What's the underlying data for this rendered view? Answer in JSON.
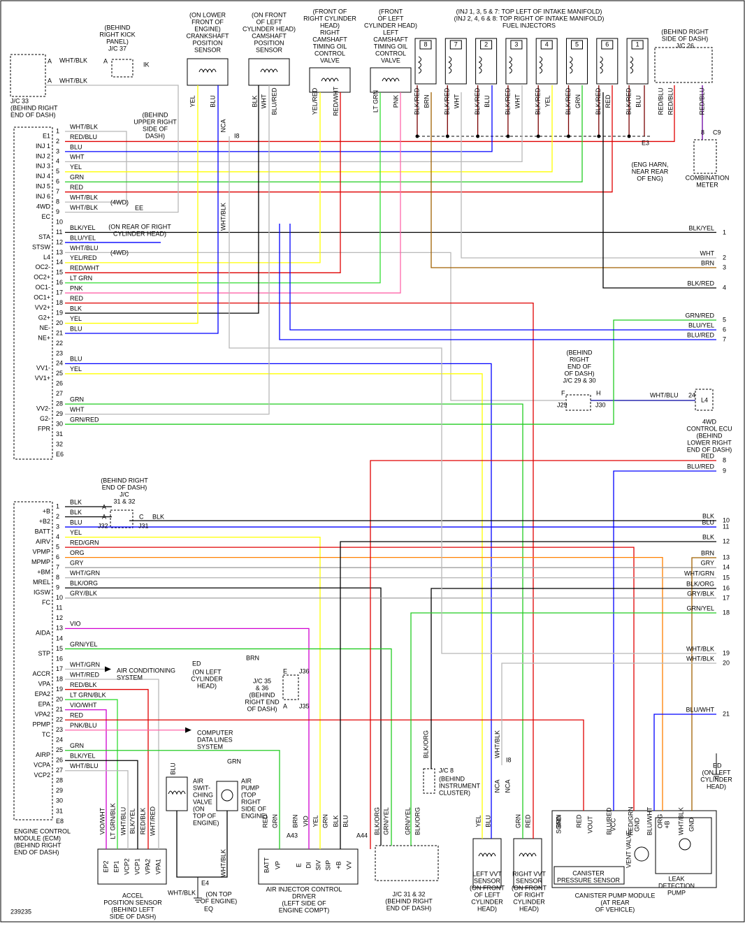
{
  "ecm_connectors": [
    {
      "id": "E6",
      "pins": [
        {
          "pin": 1,
          "name": "E1",
          "wire": "WHT/BLK"
        },
        {
          "pin": 2,
          "name": "INJ 1",
          "wire": "RED/BLU"
        },
        {
          "pin": 3,
          "name": "INJ 2",
          "wire": "BLU"
        },
        {
          "pin": 4,
          "name": "INJ 3",
          "wire": "WHT"
        },
        {
          "pin": 5,
          "name": "INJ 4",
          "wire": "YEL"
        },
        {
          "pin": 6,
          "name": "INJ 5",
          "wire": "GRN"
        },
        {
          "pin": 7,
          "name": "INJ 6",
          "wire": "RED"
        },
        {
          "pin": 8,
          "name": "4WD",
          "wire": "WHT/BLK"
        },
        {
          "pin": 9,
          "name": "EC",
          "wire": "WHT/BLK"
        },
        {
          "pin": 10
        },
        {
          "pin": 11,
          "name": "STA",
          "wire": "BLK/YEL"
        },
        {
          "pin": 12,
          "name": "STSW",
          "wire": "BLU/YEL"
        },
        {
          "pin": 13,
          "name": "L4",
          "wire": "WHT/BLU"
        },
        {
          "pin": 14,
          "name": "OC2-",
          "wire": "YEL/RED"
        },
        {
          "pin": 15,
          "name": "OC2+",
          "wire": "RED/WHT"
        },
        {
          "pin": 16,
          "name": "OC1-",
          "wire": "LT GRN"
        },
        {
          "pin": 17,
          "name": "OC1+",
          "wire": "PNK"
        },
        {
          "pin": 18,
          "name": "VV2+",
          "wire": "RED"
        },
        {
          "pin": 19,
          "name": "G2+",
          "wire": "BLK"
        },
        {
          "pin": 20,
          "name": "NE-",
          "wire": "YEL"
        },
        {
          "pin": 21,
          "name": "NE+",
          "wire": "BLU"
        },
        {
          "pin": 22
        },
        {
          "pin": 23
        },
        {
          "pin": 24,
          "name": "VV1-",
          "wire": "BLU"
        },
        {
          "pin": 25,
          "name": "VV1+",
          "wire": "YEL"
        },
        {
          "pin": 26
        },
        {
          "pin": 27
        },
        {
          "pin": 28,
          "name": "VV2-",
          "wire": "GRN"
        },
        {
          "pin": 29,
          "name": "G2-",
          "wire": "WHT"
        },
        {
          "pin": 30,
          "name": "FPR",
          "wire": "GRN/RED"
        },
        {
          "pin": 31
        },
        {
          "pin": 32
        }
      ]
    },
    {
      "id": "E8",
      "pins": [
        {
          "pin": 1,
          "name": "+B",
          "wire": "BLK"
        },
        {
          "pin": 2,
          "name": "+B2",
          "wire": "BLK"
        },
        {
          "pin": 3,
          "name": "BATT",
          "wire": "BLU"
        },
        {
          "pin": 4,
          "name": "AIRV",
          "wire": "YEL"
        },
        {
          "pin": 5,
          "name": "VPMP",
          "wire": "RED/GRN"
        },
        {
          "pin": 6,
          "name": "MPMP",
          "wire": "ORG"
        },
        {
          "pin": 7,
          "name": "+BM",
          "wire": "GRY"
        },
        {
          "pin": 8,
          "name": "MREL",
          "wire": "WHT/GRN"
        },
        {
          "pin": 9,
          "name": "IGSW",
          "wire": "BLK/ORG"
        },
        {
          "pin": 10,
          "name": "FC",
          "wire": "GRY/BLK"
        },
        {
          "pin": 11
        },
        {
          "pin": 12
        },
        {
          "pin": 13,
          "name": "AIDA",
          "wire": "VIO"
        },
        {
          "pin": 14
        },
        {
          "pin": 15,
          "name": "STP",
          "wire": "GRN/YEL"
        },
        {
          "pin": 16
        },
        {
          "pin": 17,
          "name": "ACCR",
          "wire": "WHT/GRN"
        },
        {
          "pin": 18,
          "name": "VPA",
          "wire": "WHT/RED"
        },
        {
          "pin": 19,
          "name": "EPA2",
          "wire": "RED/BLK"
        },
        {
          "pin": 20,
          "name": "EPA",
          "wire": "LT GRN/BLK"
        },
        {
          "pin": 21,
          "name": "VPA2",
          "wire": "VIO/WHT"
        },
        {
          "pin": 22,
          "name": "PPMP",
          "wire": "RED"
        },
        {
          "pin": 23,
          "name": "TC",
          "wire": "PNK/BLU"
        },
        {
          "pin": 24
        },
        {
          "pin": 25,
          "name": "AIRP",
          "wire": "GRN"
        },
        {
          "pin": 26,
          "name": "VCPA",
          "wire": "BLK/YEL"
        },
        {
          "pin": 27,
          "name": "VCP2",
          "wire": "WHT/BLU"
        },
        {
          "pin": 28
        },
        {
          "pin": 29
        },
        {
          "pin": 30
        },
        {
          "pin": 31
        }
      ]
    }
  ],
  "right_wires": [
    {
      "wire": "BLK/YEL",
      "number": 1
    },
    {
      "wire": "WHT",
      "number": 2
    },
    {
      "wire": "BRN",
      "number": 3
    },
    {
      "wire": "BLK/RED",
      "number": 4
    },
    {
      "wire": "GRN/RED",
      "number": 5
    },
    {
      "wire": "BLU/YEL",
      "number": 6
    },
    {
      "wire": "BLU/RED",
      "number": 7
    },
    {
      "wire": "RED",
      "number": 8
    },
    {
      "wire": "BLU/RED",
      "number": 9
    },
    {
      "wire": "BLK",
      "number": 10
    },
    {
      "wire": "BLU",
      "number": 11
    },
    {
      "wire": "BLK",
      "number": 12
    },
    {
      "wire": "BRN",
      "number": 13
    },
    {
      "wire": "GRY",
      "number": 14
    },
    {
      "wire": "WHT/GRN",
      "number": 15
    },
    {
      "wire": "BLK/ORG",
      "number": 16
    },
    {
      "wire": "GRY/BLK",
      "number": 17
    },
    {
      "wire": "GRN/YEL",
      "number": 18
    },
    {
      "wire": "WHT/BLK",
      "number": 19
    },
    {
      "wire": "WHT/BLK",
      "number": 20
    },
    {
      "wire": "BLU/WHT",
      "number": 21
    }
  ],
  "labels": [
    [
      "(BEHIND",
      "RIGHT KICK",
      "PANEL)",
      "J/C 37"
    ],
    [
      "J/C 33",
      "(BEHIND RIGHT",
      "END OF DASH)"
    ],
    [
      "(ON LOWER",
      "FRONT OF",
      "ENGINE)",
      "CRANKSHAFT",
      "POSITION",
      "SENSOR"
    ],
    [
      "(ON FRONT",
      "OF LEFT",
      "CYLINDER HEAD)",
      "CAMSHAFT",
      "POSITION",
      "SENSOR"
    ],
    [
      "(FRONT OF",
      "RIGHT CYLINDER",
      "HEAD)",
      "RIGHT",
      "CAMSHAFT",
      "TIMING OIL",
      "CONTROL",
      "VALVE"
    ],
    [
      "(FRONT",
      "OF LEFT",
      "CYLINDER HEAD)",
      "LEFT",
      "CAMSHAFT",
      "TIMING OIL",
      "CONTROL",
      "VALVE"
    ],
    [
      "(INJ 1, 3, 5 & 7: TOP LEFT OF INTAKE MANIFOLD)",
      "(INJ 2, 4, 6 & 8: TOP RIGHT OF INTAKE MANIFOLD)",
      "FUEL INJECTORS"
    ],
    [
      "(BEHIND RIGHT",
      "SIDE OF DASH)",
      "J/C 26"
    ],
    [
      "(BEHIND",
      "UPPER RIGHT",
      "SIDE OF",
      "DASH)"
    ],
    [
      "(ON REAR OF RIGHT",
      "CYLINDER HEAD)"
    ],
    [
      "(ENG HARN,",
      "NEAR REAR",
      "OF ENG)"
    ],
    [
      "COMBINATION",
      "METER"
    ],
    [
      "(BEHIND",
      "RIGHT",
      "END OF",
      "OF DASH)",
      "J/C 29 & 30"
    ],
    [
      "4WD",
      "CONTROL ECU",
      "(BEHIND",
      "LOWER RIGHT",
      "END OF DASH)"
    ],
    [
      "(BEHIND RIGHT",
      "END OF DASH)",
      "J/C",
      "31 & 32"
    ],
    [
      "(ON LEFT",
      "CYLINDER",
      "HEAD)"
    ],
    [
      "J/C 35",
      "& 36",
      "(BEHIND",
      "RIGHT END",
      "OF DASH)"
    ],
    [
      "AIR CONDITIONING",
      "SYSTEM"
    ],
    [
      "COMPUTER",
      "DATA LINES",
      "SYSTEM"
    ],
    [
      "AIR",
      "SWIT-",
      "CHING",
      "VALVE",
      "(ON",
      "TOP OF",
      "ENGINE)"
    ],
    [
      "AIR",
      "PUMP",
      "(TOP",
      "RIGHT",
      "SIDE OF",
      "ENGINE)"
    ],
    [
      "(BEHIND",
      "INSTRUMENT",
      "CLUSTER)"
    ],
    [
      "(ON LEFT",
      "CYLINDER",
      "HEAD)"
    ],
    [
      "ENGINE CONTROL",
      "MODULE (ECM)",
      "(BEHIND RIGHT",
      "END OF DASH)"
    ],
    [
      "ACCEL",
      "POSITION SENSOR",
      "(BEHIND LEFT",
      "SIDE OF DASH)"
    ],
    [
      "(ON TOP",
      "OF ENGINE)"
    ],
    [
      "AIR INJECTOR CONTROL",
      "DRIVER",
      "(LEFT SIDE OF",
      "ENGINE COMPT)"
    ],
    [
      "J/C 31 & 32",
      "(BEHIND RIGHT",
      "END OF DASH)"
    ],
    [
      "LEFT VVT",
      "SENSOR",
      "(ON FRONT",
      "OF LEFT",
      "CYLINDER",
      "HEAD)"
    ],
    [
      "RIGHT VVT",
      "SENSOR",
      "(ON FRONT",
      "OF RIGHT",
      "CYLINDER",
      "HEAD)"
    ],
    [
      "CANISTER",
      "PRESSURE SENSOR"
    ],
    [
      "CANISTER PUMP MODULE",
      "(AT REAR",
      "OF VEHICLE)"
    ],
    [
      "LEAK",
      "DETECTION",
      "PUMP"
    ],
    [
      "239235"
    ]
  ],
  "tags": [
    "IK",
    "I8",
    "EE",
    "E3",
    "C9",
    "8",
    "(4WD)",
    "(4WD)",
    "J32",
    "J31",
    "C",
    "A",
    "A",
    "BLK",
    "J29",
    "J30",
    "F",
    "H",
    "WHT/BLU",
    "24",
    "L4",
    "ED",
    "BRN",
    "E",
    "J36",
    "A",
    "J35",
    "WHT/BLK",
    "E4",
    "EQ",
    "GRN",
    "J/C 8",
    "I8",
    "ED",
    "A43",
    "A44",
    "WHT/BLK",
    "WHT/BLK",
    "A",
    "A",
    "A"
  ],
  "vertical_tags": [
    "YEL",
    "BLU",
    "BLK",
    "WHT",
    "BLU/RED",
    "YEL/RED",
    "RED/WHT",
    "LT GRN",
    "PNK",
    "BLK/RED",
    "BRN",
    "BLK/RED",
    "WHT",
    "BLK/RED",
    "BLU",
    "BLK/RED",
    "WHT",
    "BLK/RED",
    "YEL",
    "BLK/RED",
    "GRN",
    "BLK/RED",
    "RED",
    "BLK/RED",
    "BLU",
    "RED/BLU",
    "RED/BLU",
    "RED/BLU",
    "NCA",
    "WHT/BLK",
    "VIO/WHT",
    "LT GRN/BLK",
    "WHT/BLU",
    "BLK/YEL",
    "RED/BLK",
    "WHT/RED",
    "RED",
    "GRN",
    "BRN",
    "VIO",
    "YEL",
    "GRN",
    "BLK",
    "BLU",
    "BLK/ORG",
    "GRN/YEL",
    "GRN/YEL",
    "BLK/ORG",
    "YEL",
    "BLU",
    "GRN",
    "RED",
    "BRN",
    "RED",
    "BLU/RED",
    "RED/GRN",
    "BLU/WHT",
    "ORG",
    "WHT/BLK",
    "BLU",
    "WHT/BLK",
    "BLK/ORG",
    "WHT/BLK",
    "NCA",
    "NCA"
  ],
  "pin_names": [
    "EP2",
    "EP1",
    "VCP2",
    "VCP1",
    "VPA2",
    "VPA1",
    "BATT",
    "VP",
    "E",
    "DI",
    "SIV",
    "SIP",
    "+B",
    "VV",
    "SGND",
    "VOUT",
    "VCC",
    "GND",
    "+B",
    "GND",
    "VENT VALVE"
  ],
  "injectors": [
    "8",
    "7",
    "2",
    "3",
    "4",
    "5",
    "6",
    "1"
  ]
}
